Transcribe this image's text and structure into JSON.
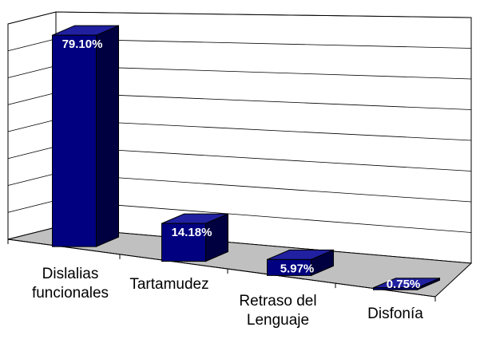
{
  "chart_data": {
    "type": "bar3d",
    "categories": [
      "Dislalias funcionales",
      "Tartamudez",
      "Retraso del Lenguaje",
      "Disfonía"
    ],
    "values": [
      79.1,
      14.18,
      5.97,
      0.75
    ],
    "value_labels": [
      "79.10%",
      "14.18%",
      "5.97%",
      "0.75%"
    ],
    "color": "#000080",
    "ylim": [
      0,
      80
    ],
    "yticks": [
      0,
      10,
      20,
      30,
      40,
      50,
      60,
      70,
      80
    ],
    "grid": true
  }
}
